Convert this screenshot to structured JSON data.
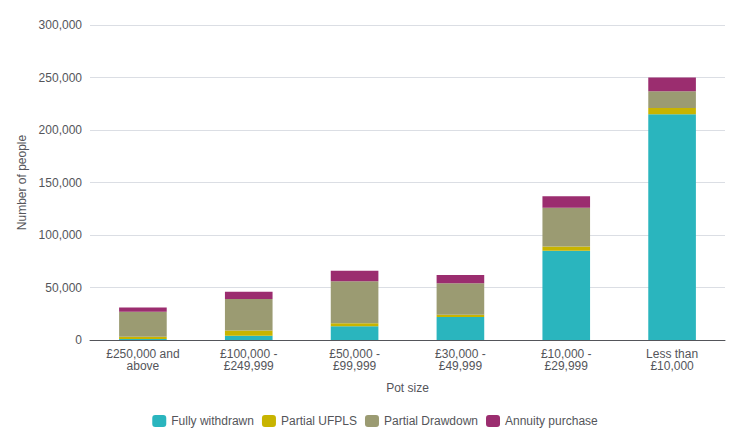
{
  "chart_data": {
    "type": "bar",
    "stacked": true,
    "xlabel": "Pot size",
    "ylabel": "Number of people",
    "categories": [
      "£250,000 and\nabove",
      "£100,000 -\n£249,999",
      "£50,000 -\n£99,999",
      "£30,000 -\n£49,999",
      "£10,000 -\n£29,999",
      "Less than\n£10,000"
    ],
    "series": [
      {
        "name": "Fully withdrawn",
        "color": "#2ab5be",
        "values": [
          1000,
          4000,
          13000,
          22000,
          85000,
          215000
        ]
      },
      {
        "name": "Partial UFPLS",
        "color": "#c8b400",
        "values": [
          2000,
          5000,
          3000,
          2000,
          4000,
          6000
        ]
      },
      {
        "name": "Partial Drawdown",
        "color": "#9b9b72",
        "values": [
          24000,
          30000,
          40000,
          30000,
          37000,
          16000
        ]
      },
      {
        "name": "Annuity purchase",
        "color": "#9b2d6f",
        "values": [
          4000,
          7000,
          10000,
          8000,
          11000,
          13000
        ]
      }
    ],
    "ylim": [
      0,
      300000
    ],
    "yticks": [
      0,
      {
        "value": 50000,
        "label": "50,000"
      },
      {
        "value": 100000,
        "label": "100,000"
      },
      {
        "value": 150000,
        "label": "150,000"
      },
      {
        "value": 200000,
        "label": "200,000"
      },
      {
        "value": 250000,
        "label": "250,000"
      },
      {
        "value": 300000,
        "label": "300,000"
      }
    ],
    "grid": true,
    "legend": "bottom"
  }
}
